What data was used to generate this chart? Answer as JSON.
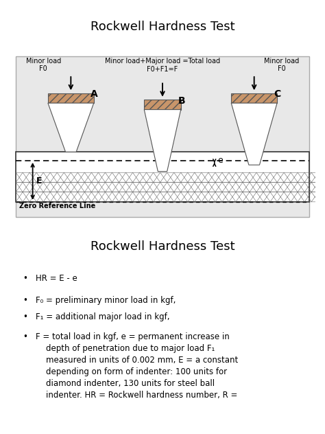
{
  "title1": "Rockwell Hardness Test",
  "title2": "Rockwell Hardness Test",
  "bg_color": "#ffffff",
  "diagram_bg": "#e0e0e0",
  "indenter_fill": "#c8956a",
  "indenter_hatch_fill": "#b07040",
  "material_bg": "#ffffff",
  "zero_ref_text": "Zero Reference Line",
  "minor_load_text_A": "Minor load\nF0",
  "minor_load_text_C": "Minor load\nF0",
  "center_text_line1": "Minor load+Major load =Total load",
  "center_text_line2": "F0+F1=F",
  "label_A": "A",
  "label_B": "B",
  "label_C": "C",
  "label_E": "E",
  "label_e": "e",
  "bullet_lines": [
    "HR = E - e",
    "F₀ = preliminary minor load in kgf,",
    "F₁ = additional major load in kgf,",
    "F = total load in kgf, e = permanent increase in\n    depth of penetration due to major load F₁\n    measured in units of 0.002 mm, E = a constant\n    depending on form of indenter: 100 units for\n    diamond indenter, 130 units for steel ball\n    indenter. HR = Rockwell hardness number, R ="
  ]
}
